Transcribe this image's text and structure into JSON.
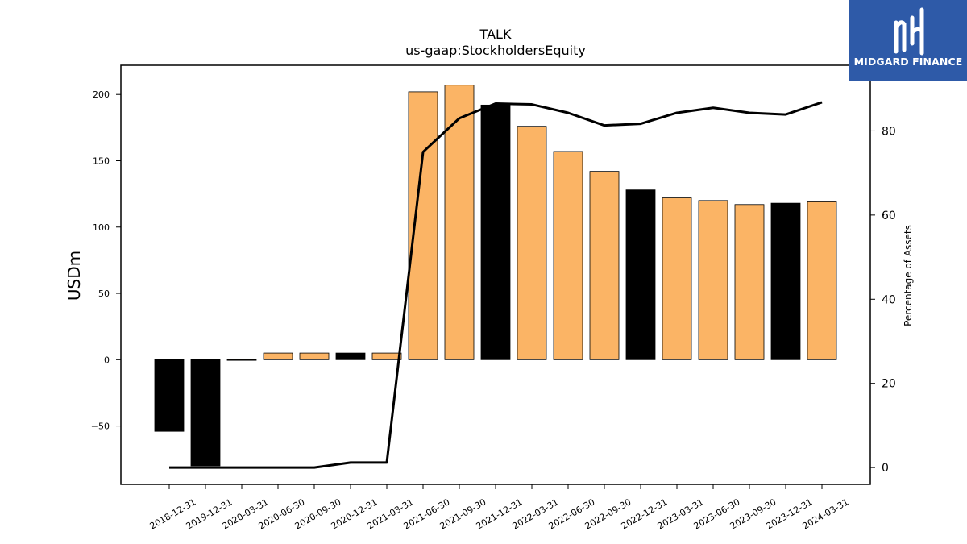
{
  "logo": {
    "text": "MIDGARD FINANCE"
  },
  "chart_data": {
    "type": "bar",
    "title": "TALK",
    "subtitle": "us-gaap:StockholdersEquity",
    "ylabel": "USDm",
    "y2label": "Percentage of Assets",
    "ylim": [
      -94,
      222
    ],
    "y2lim": [
      -4,
      95.6
    ],
    "yticks": [
      -50,
      0,
      50,
      100,
      150,
      200
    ],
    "y2ticks": [
      0,
      20,
      40,
      60,
      80
    ],
    "categories": [
      "2018-12-31",
      "2019-12-31",
      "2020-03-31",
      "2020-06-30",
      "2020-09-30",
      "2020-12-31",
      "2021-03-31",
      "2021-06-30",
      "2021-09-30",
      "2021-12-31",
      "2022-03-31",
      "2022-06-30",
      "2022-09-30",
      "2022-12-31",
      "2023-03-31",
      "2023-06-30",
      "2023-09-30",
      "2023-12-31",
      "2024-03-31"
    ],
    "series": [
      {
        "type": "bar",
        "values": [
          -54,
          -80,
          -0.5,
          5,
          5,
          5,
          5,
          202,
          207,
          192,
          176,
          157,
          142,
          128,
          122,
          120,
          117,
          118,
          119
        ],
        "colors": [
          "#000000",
          "#000000",
          "#fbb465",
          "#fbb465",
          "#fbb465",
          "#000000",
          "#fbb465",
          "#fbb465",
          "#fbb465",
          "#000000",
          "#fbb465",
          "#fbb465",
          "#fbb465",
          "#000000",
          "#fbb465",
          "#fbb465",
          "#fbb465",
          "#000000",
          "#fbb465"
        ]
      },
      {
        "type": "line",
        "axis": "right",
        "values": [
          0,
          0,
          0,
          0,
          0,
          1.2,
          1.2,
          75,
          83,
          86.5,
          86.3,
          84.3,
          81.3,
          81.7,
          84.3,
          85.5,
          84.3,
          83.9,
          86.8
        ],
        "color": "#000000"
      }
    ],
    "grid": false
  }
}
